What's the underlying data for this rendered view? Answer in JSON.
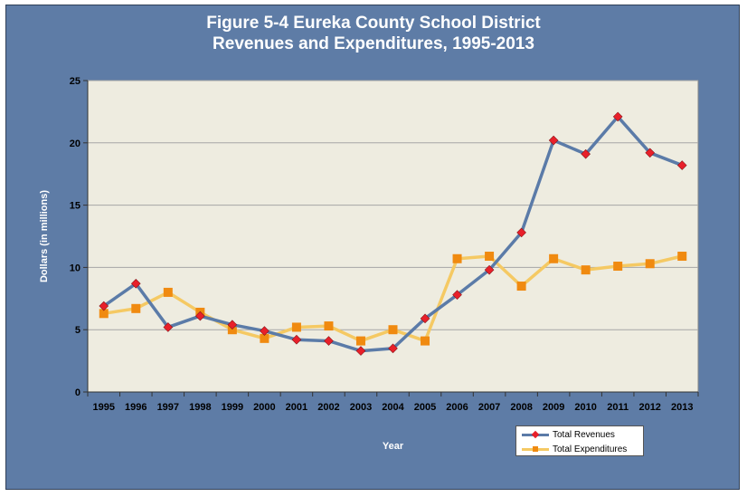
{
  "chart_data": {
    "type": "line",
    "title": "Figure 5-4 Eureka County School District",
    "subtitle": "Revenues and Expenditures, 1995-2013",
    "xlabel": "Year",
    "ylabel": "Dollars (in millions)",
    "ylim": [
      0,
      25
    ],
    "yticks": [
      0,
      5,
      10,
      15,
      20,
      25
    ],
    "categories": [
      "1995",
      "1996",
      "1997",
      "1998",
      "1999",
      "2000",
      "2001",
      "2002",
      "2003",
      "2004",
      "2005",
      "2006",
      "2007",
      "2008",
      "2009",
      "2010",
      "2011",
      "2012",
      "2013"
    ],
    "grid": true,
    "legend_position": "bottom-right",
    "series": [
      {
        "name": "Total Revenues",
        "color": "#5b7ba8",
        "marker": "diamond",
        "marker_color": "#e8202a",
        "values": [
          6.9,
          8.7,
          5.2,
          6.1,
          5.4,
          4.9,
          4.2,
          4.1,
          3.3,
          3.5,
          5.9,
          7.8,
          9.8,
          12.8,
          20.2,
          19.1,
          22.1,
          19.2,
          18.2
        ]
      },
      {
        "name": "Total Expenditures",
        "color": "#f5c963",
        "marker": "square",
        "marker_color": "#f08a10",
        "values": [
          6.3,
          6.7,
          8.0,
          6.4,
          5.0,
          4.3,
          5.2,
          5.3,
          4.1,
          5.0,
          4.1,
          10.7,
          10.9,
          8.5,
          10.7,
          9.8,
          10.1,
          10.3,
          10.9
        ]
      }
    ]
  }
}
